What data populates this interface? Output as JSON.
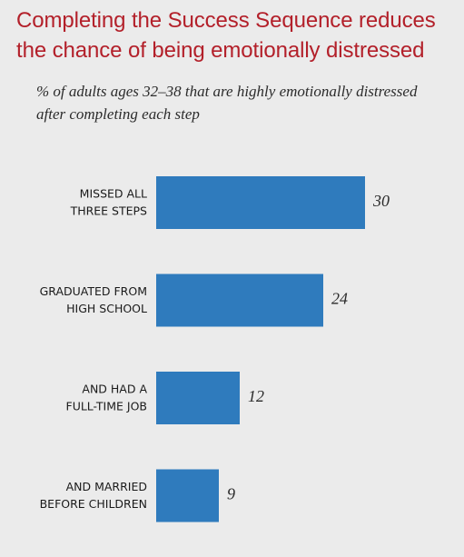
{
  "header": {
    "title": "Completing the Success Sequence reduces the chance of being emotionally distressed",
    "subtitle": "% of adults ages 32–38 that are highly emotionally distressed after completing each step"
  },
  "chart_data": {
    "type": "bar",
    "orientation": "horizontal",
    "title": "Completing the Success Sequence reduces the chance of being emotionally distressed",
    "subtitle": "% of adults ages 32–38 that are highly emotionally distressed after completing each step",
    "categories": [
      [
        "MISSED ALL",
        "THREE STEPS"
      ],
      [
        "GRADUATED FROM",
        "HIGH SCHOOL"
      ],
      [
        "AND HAD A",
        "FULL-TIME JOB"
      ],
      [
        "AND MARRIED",
        "BEFORE CHILDREN"
      ]
    ],
    "values": [
      30,
      24,
      12,
      9
    ],
    "value_labels": [
      "30",
      "24",
      "12",
      "9"
    ],
    "xlim": [
      0,
      30
    ],
    "grid": false,
    "legend": "none",
    "bar_color": "#2f7bbd"
  }
}
